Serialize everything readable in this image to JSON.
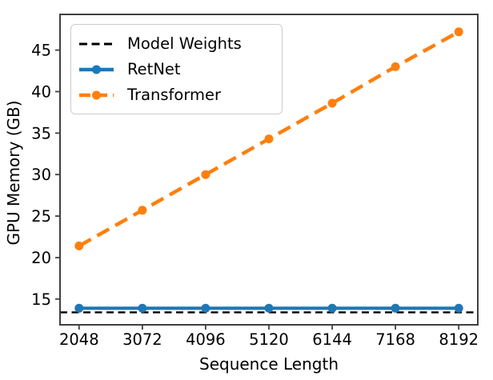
{
  "figure": {
    "background": "#ffffff",
    "text_color": "#000000",
    "spine_color": "#404040"
  },
  "chart_data": {
    "type": "line",
    "title": "",
    "xlabel": "Sequence Length",
    "ylabel": "GPU Memory (GB)",
    "x": [
      2048,
      3072,
      4096,
      5120,
      6144,
      7168,
      8192
    ],
    "xtick_labels": [
      "2048",
      "3072",
      "4096",
      "5120",
      "6144",
      "7168",
      "8192"
    ],
    "yticks": [
      15,
      20,
      25,
      30,
      35,
      40,
      45
    ],
    "ytick_labels": [
      "15",
      "20",
      "25",
      "30",
      "35",
      "40",
      "45"
    ],
    "xlim": [
      1740,
      8500
    ],
    "ylim": [
      11.9,
      49.3
    ],
    "grid": false,
    "legend_position": "upper-left",
    "series": [
      {
        "name": "Model Weights",
        "kind": "hline",
        "value": 13.4,
        "color": "#000000",
        "dash": "dashed",
        "linewidth": 2.4,
        "marker": false
      },
      {
        "name": "RetNet",
        "kind": "line",
        "values": [
          13.9,
          13.9,
          13.9,
          13.9,
          13.9,
          13.9,
          13.9
        ],
        "color": "#1f77b4",
        "dash": "solid",
        "linewidth": 4.2,
        "marker": true
      },
      {
        "name": "Transformer",
        "kind": "line",
        "values": [
          21.4,
          25.7,
          30.0,
          34.3,
          38.6,
          43.0,
          47.2
        ],
        "color": "#ff7f0e",
        "dash": "dashed",
        "linewidth": 4.5,
        "marker": true
      }
    ]
  }
}
